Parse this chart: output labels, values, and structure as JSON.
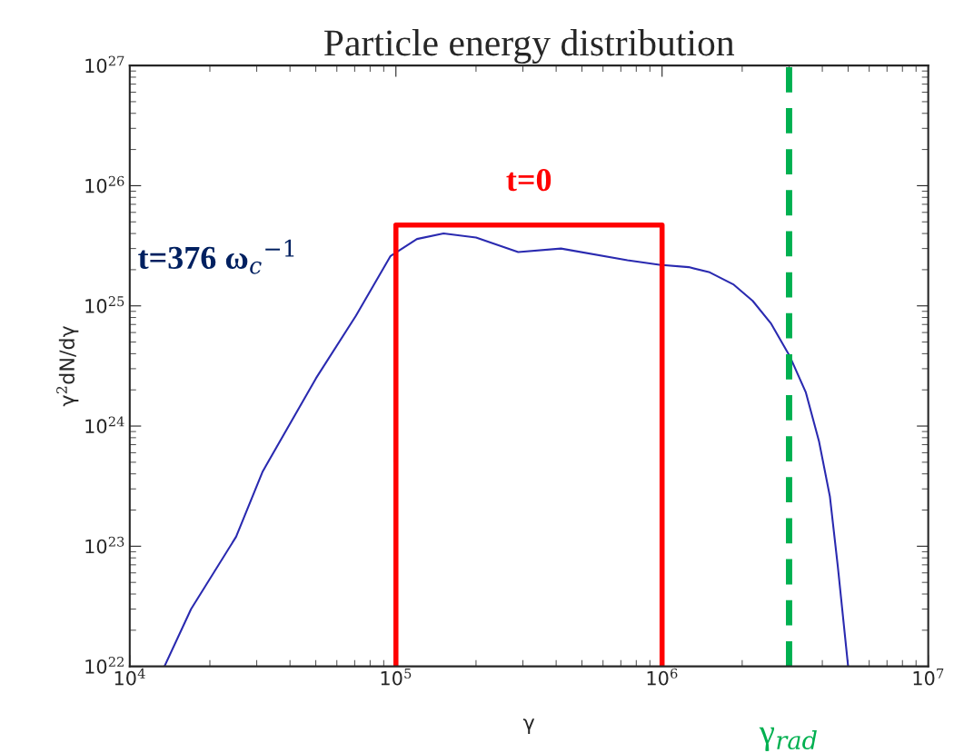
{
  "chart_data": {
    "type": "line",
    "title": "Particle energy distribution",
    "xlabel": "γ",
    "ylabel": "γ$^{2}$dN/dγ",
    "log": "xy",
    "xlim": [
      10000,
      10000000
    ],
    "ylim": [
      1e+22,
      1e+27
    ],
    "xticks": [
      {
        "value": 10000,
        "label": "10$^{4}$"
      },
      {
        "value": 100000,
        "label": "10$^{5}$"
      },
      {
        "value": 1000000,
        "label": "10$^{6}$"
      },
      {
        "value": 10000000,
        "label": "10$^{7}$"
      }
    ],
    "yticks": [
      {
        "value": 1e+22,
        "label": "10$^{22}$"
      },
      {
        "value": 1e+23,
        "label": "10$^{23}$"
      },
      {
        "value": 1e+24,
        "label": "10$^{24}$"
      },
      {
        "value": 1e+25,
        "label": "10$^{25}$"
      },
      {
        "value": 1e+26,
        "label": "10$^{26}$"
      },
      {
        "value": 1e+27,
        "label": "10$^{27}$"
      }
    ],
    "grid": false,
    "legend": false,
    "series": [
      {
        "name": "t=376 ω$_{c}$$^{−1}$",
        "color": "#2a2ab0",
        "x": [
          13500,
          17000,
          25100,
          31600,
          50100,
          70800,
          95500,
          120000,
          151000,
          200000,
          288000,
          417000,
          741000,
          977000,
          1260000,
          1510000,
          1860000,
          2190000,
          2570000,
          3020000,
          3470000,
          3890000,
          4270000,
          4570000,
          5000000
        ],
        "values": [
          1e+22,
          3e+22,
          1.2e+23,
          4.2e+23,
          2.5e+24,
          8.3e+24,
          2.6e+25,
          3.6e+25,
          4e+25,
          3.7e+25,
          2.8e+25,
          3e+25,
          2.4e+25,
          2.2e+25,
          2.1e+25,
          1.9e+25,
          1.5e+25,
          1.1e+25,
          7.1e+24,
          3.8e+24,
          1.9e+24,
          7.4e+23,
          2.6e+23,
          6.9e+22,
          1e+22
        ]
      },
      {
        "name": "t=0",
        "color": "#ff0000",
        "x": [
          100000,
          100000,
          1000000,
          1000000
        ],
        "values": [
          1e+22,
          4.7e+25,
          4.7e+25,
          1e+22
        ]
      }
    ],
    "ref_lines": [
      {
        "axis": "x",
        "value": 3000000,
        "label": "γ$_{rad}$",
        "color": "#00b050",
        "line_style": "dashed"
      }
    ]
  }
}
